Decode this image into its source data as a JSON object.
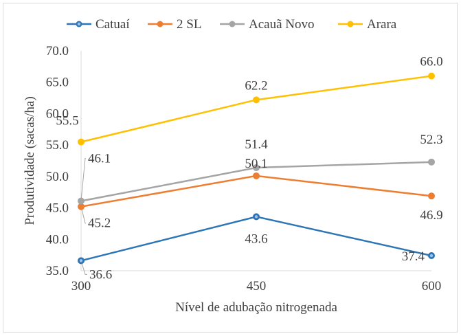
{
  "chart_data": {
    "type": "line",
    "xlabel": "Nível de adubação nitrogenada",
    "ylabel": "Produtividade (sacas/ha)",
    "x": [
      300,
      450,
      600
    ],
    "x_tick_labels": [
      "300",
      "450",
      "600"
    ],
    "ylim": [
      35.0,
      70.0
    ],
    "y_ticks": [
      "35.0",
      "40.0",
      "45.0",
      "50.0",
      "55.0",
      "60.0",
      "65.0",
      "70.0"
    ],
    "grid": false,
    "legend_position": "top",
    "series": [
      {
        "name": "Catuaí",
        "color": "#2e75b6",
        "values": [
          36.6,
          43.6,
          37.4
        ],
        "labels": [
          "36.6",
          "43.6",
          "37.4"
        ]
      },
      {
        "name": "2 SL",
        "color": "#ed7d31",
        "values": [
          45.2,
          50.1,
          46.9
        ],
        "labels": [
          "45.2",
          "50.1",
          "46.9"
        ]
      },
      {
        "name": "Acauã Novo",
        "color": "#a5a5a5",
        "values": [
          46.1,
          51.4,
          52.3
        ],
        "labels": [
          "46.1",
          "51.4",
          "52.3"
        ]
      },
      {
        "name": "Arara",
        "color": "#ffc000",
        "values": [
          55.5,
          62.2,
          66.0
        ],
        "labels": [
          "55.5",
          "62.2",
          "66.0"
        ]
      }
    ]
  }
}
